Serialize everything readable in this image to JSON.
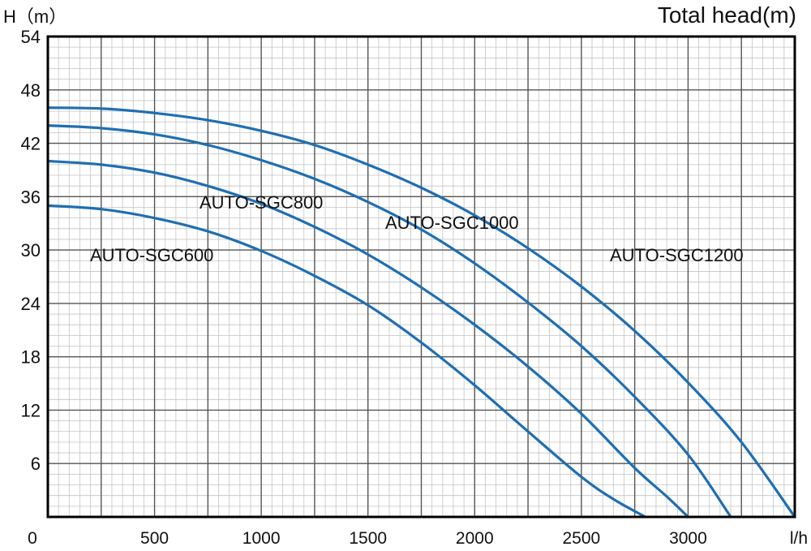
{
  "chart_data": {
    "type": "line",
    "title": "Total head(m)",
    "ylabel": "H（m）",
    "xlabel": "l/h",
    "x_origin_label": "0",
    "xlim": [
      0,
      3500
    ],
    "ylim": [
      0,
      54
    ],
    "grid": true,
    "y_ticks": [
      "6",
      "12",
      "18",
      "24",
      "30",
      "36",
      "42",
      "48",
      "54"
    ],
    "x_ticks": [
      "500",
      "1000",
      "1500",
      "2000",
      "2500",
      "3000"
    ],
    "series": [
      {
        "name": "AUTO-SGC600",
        "color": "#1f6fb2",
        "x": [
          0,
          250,
          500,
          750,
          1000,
          1250,
          1500,
          1750,
          2000,
          2250,
          2500,
          2650,
          2800
        ],
        "y": [
          35,
          34.6,
          33.6,
          32.1,
          29.9,
          27.1,
          23.8,
          19.6,
          14.8,
          9.6,
          4.5,
          2.0,
          0
        ]
      },
      {
        "name": "AUTO-SGC800",
        "color": "#1f6fb2",
        "x": [
          0,
          250,
          500,
          750,
          1000,
          1250,
          1500,
          1750,
          2000,
          2250,
          2500,
          2750,
          2900,
          3000
        ],
        "y": [
          40,
          39.6,
          38.7,
          37.2,
          35.2,
          32.6,
          29.5,
          25.8,
          21.6,
          16.9,
          11.6,
          5.5,
          2.3,
          0
        ]
      },
      {
        "name": "AUTO-SGC1000",
        "color": "#1f6fb2",
        "x": [
          0,
          250,
          500,
          750,
          1000,
          1250,
          1500,
          1750,
          2000,
          2250,
          2500,
          2750,
          3000,
          3200
        ],
        "y": [
          44,
          43.7,
          43.0,
          41.8,
          40.1,
          38.0,
          35.4,
          32.3,
          28.5,
          24.1,
          19.2,
          13.5,
          7.0,
          0
        ]
      },
      {
        "name": "AUTO-SGC1200",
        "color": "#1f6fb2",
        "x": [
          0,
          250,
          500,
          750,
          1000,
          1250,
          1500,
          1750,
          2000,
          2250,
          2500,
          2750,
          3000,
          3250,
          3500
        ],
        "y": [
          46,
          45.9,
          45.4,
          44.6,
          43.4,
          41.8,
          39.6,
          37.0,
          33.9,
          30.2,
          25.9,
          20.9,
          15.1,
          8.4,
          0
        ]
      }
    ]
  }
}
